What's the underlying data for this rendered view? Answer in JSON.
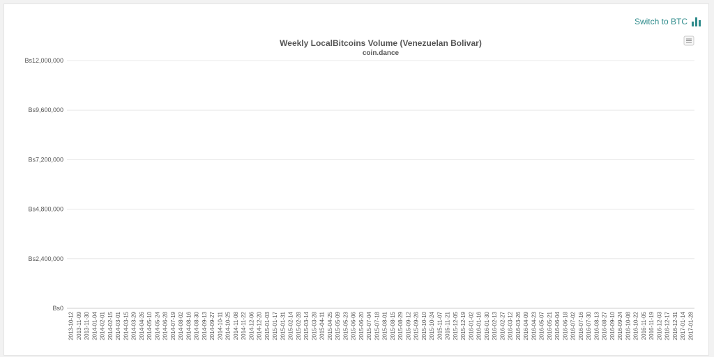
{
  "header": {
    "switch_label": "Switch to BTC",
    "switch_icon": "bar-chart-icon",
    "menu_icon": "hamburger-menu-icon"
  },
  "colors": {
    "bar": "#4a90e2",
    "switch_text": "#2e8b8b",
    "grid": "#e8e8e8"
  },
  "chart_data": {
    "type": "bar",
    "title": "Weekly LocalBitcoins Volume (Venezuelan Bolivar)",
    "subtitle": "coin.dance",
    "xlabel": "",
    "ylabel": "",
    "ylim": [
      0,
      12000000
    ],
    "yticks": [
      0,
      2400000,
      4800000,
      7200000,
      9600000,
      12000000
    ],
    "ytick_labels": [
      "Bs0",
      "Bs2,400,000",
      "Bs4,800,000",
      "Bs7,200,000",
      "Bs9,600,000",
      "Bs12,000,000"
    ],
    "grid": true,
    "legend": "none",
    "x_tick_labels": [
      "2013-10-12",
      "2013-11-09",
      "2013-11-30",
      "2014-01-04",
      "2014-02-01",
      "2014-02-15",
      "2014-03-01",
      "2014-03-15",
      "2014-03-29",
      "2014-04-26",
      "2014-05-10",
      "2014-05-24",
      "2014-06-28",
      "2014-07-19",
      "2014-08-02",
      "2014-08-16",
      "2014-08-30",
      "2014-09-13",
      "2014-09-27",
      "2014-10-11",
      "2014-10-25",
      "2014-11-08",
      "2014-11-22",
      "2014-12-06",
      "2014-12-20",
      "2015-01-03",
      "2015-01-17",
      "2015-01-31",
      "2015-02-14",
      "2015-02-28",
      "2015-03-14",
      "2015-03-28",
      "2015-04-11",
      "2015-04-25",
      "2015-05-09",
      "2015-05-23",
      "2015-06-06",
      "2015-06-20",
      "2015-07-04",
      "2015-07-18",
      "2015-08-01",
      "2015-08-15",
      "2015-08-29",
      "2015-09-12",
      "2015-09-26",
      "2015-10-10",
      "2015-10-24",
      "2015-11-07",
      "2015-11-21",
      "2015-12-05",
      "2015-12-19",
      "2016-01-02",
      "2016-01-16",
      "2016-01-30",
      "2016-02-13",
      "2016-02-27",
      "2016-03-12",
      "2016-03-26",
      "2016-04-09",
      "2016-04-23",
      "2016-05-07",
      "2016-05-21",
      "2016-06-04",
      "2016-06-18",
      "2016-07-02",
      "2016-07-16",
      "2016-07-30",
      "2016-08-13",
      "2016-08-27",
      "2016-09-10",
      "2016-09-24",
      "2016-10-08",
      "2016-10-22",
      "2016-11-05",
      "2016-11-19",
      "2016-12-03",
      "2016-12-17",
      "2016-12-31",
      "2017-01-14",
      "2017-01-28"
    ],
    "values": [
      0,
      0,
      0,
      0,
      0,
      0,
      0,
      0,
      0,
      0,
      0,
      0,
      0,
      0,
      0,
      0,
      0,
      0,
      0,
      0,
      0,
      0,
      0,
      0,
      0,
      0,
      0,
      0,
      0,
      0,
      0,
      0,
      0,
      0,
      0,
      0,
      0,
      0,
      0,
      0,
      0,
      0,
      0,
      0,
      0,
      0,
      0,
      0,
      0,
      0,
      0,
      0,
      0,
      0,
      0,
      0,
      0,
      0,
      0,
      0,
      0,
      0,
      0,
      0,
      0,
      0,
      0,
      0,
      0,
      0,
      0,
      0,
      0,
      0,
      0,
      0,
      0,
      0,
      0,
      0,
      0,
      0,
      0,
      0,
      0,
      0,
      0,
      0,
      0,
      0,
      0,
      0,
      0,
      0,
      0,
      0,
      0,
      0,
      0,
      0,
      0,
      0,
      0,
      0,
      0,
      0,
      0,
      0,
      0,
      0,
      0,
      0,
      0,
      0,
      0,
      0,
      0,
      0,
      0,
      0,
      0,
      0,
      0,
      0,
      0,
      0,
      0,
      0,
      0,
      0,
      0,
      0,
      0,
      0,
      0,
      0,
      0,
      0,
      0,
      0,
      0,
      0,
      0,
      0,
      0,
      0,
      0,
      0,
      0,
      0,
      0,
      0,
      0,
      0,
      0,
      0,
      0,
      0,
      0,
      0,
      0,
      0,
      0,
      0,
      0,
      0,
      0,
      0,
      0,
      0,
      0,
      0,
      0,
      0,
      0,
      0,
      0,
      0,
      0,
      0,
      0,
      0,
      0,
      0,
      0,
      0,
      0,
      0,
      0,
      0,
      0,
      0,
      0,
      0,
      0,
      0,
      0,
      0,
      0,
      0,
      0,
      0,
      0,
      0,
      0,
      0,
      0,
      0,
      0,
      0,
      0,
      0,
      0,
      0,
      0,
      0,
      0,
      0,
      0,
      0,
      0,
      0,
      0,
      0,
      0,
      0,
      0,
      0,
      0,
      0,
      0,
      0,
      0,
      0,
      0,
      0,
      0,
      0,
      0,
      0,
      0,
      0,
      0,
      0,
      0,
      0,
      0,
      0,
      0,
      0,
      0,
      0,
      0,
      0,
      0,
      0,
      0,
      0,
      0,
      0,
      0,
      0,
      0,
      0,
      0,
      0,
      0,
      0,
      0,
      0,
      0,
      0,
      0,
      0,
      0,
      0,
      0,
      0,
      0,
      0,
      0,
      0,
      0,
      0,
      0,
      0,
      0,
      0,
      0,
      0,
      0,
      0,
      0,
      0,
      0,
      0,
      0,
      0,
      0,
      0,
      0,
      0,
      0,
      0,
      0,
      0,
      0,
      0,
      0,
      0,
      0,
      0,
      0,
      0,
      0,
      0,
      0,
      0,
      0,
      0,
      0,
      0,
      0,
      0,
      0,
      0,
      0,
      0,
      0,
      0,
      0,
      0,
      0,
      0,
      0,
      0,
      0,
      0,
      0,
      0,
      0,
      0,
      0,
      0,
      0,
      0,
      0,
      0,
      0,
      0,
      0,
      0,
      0,
      0,
      0,
      0,
      0,
      0,
      0,
      0,
      0,
      0,
      0,
      0,
      0,
      0,
      0,
      0,
      0,
      0,
      0,
      0,
      0,
      0,
      0,
      0,
      0,
      0,
      0,
      0,
      0,
      0,
      0,
      0,
      0,
      0,
      0,
      0,
      0,
      0,
      0,
      0,
      0,
      0,
      0,
      0,
      0,
      0,
      0,
      0
    ]
  }
}
